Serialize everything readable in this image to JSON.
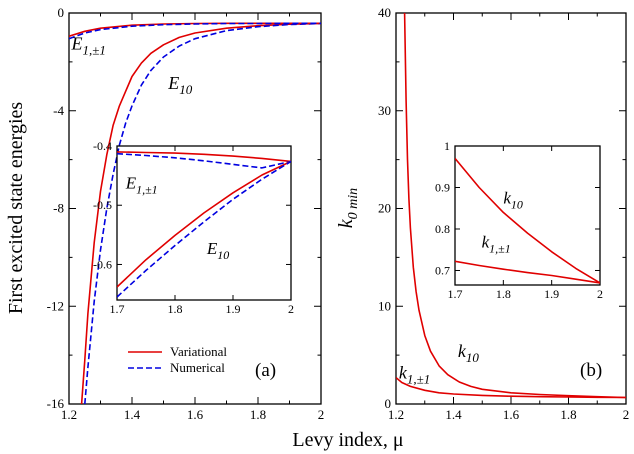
{
  "xlabel": "Levy index, μ",
  "colors": {
    "variational": "#e00000",
    "numerical": "#0000e0"
  },
  "legend": {
    "placement": "bottom-left",
    "entries": [
      {
        "label": "Variational",
        "color": "#e00000",
        "style": "solid"
      },
      {
        "label": "Numerical",
        "color": "#0000e0",
        "style": "dashed"
      }
    ]
  },
  "chart_data": [
    {
      "id": "a",
      "type": "line",
      "panel_label": "(a)",
      "ylabel": "First excited state energies",
      "xlim": [
        1.2,
        2.0
      ],
      "ylim": [
        -16,
        0
      ],
      "xticks": [
        1.2,
        1.4,
        1.6,
        1.8,
        2
      ],
      "xtick_labels": [
        "1.2",
        "1.4",
        "1.6",
        "1.8",
        "2"
      ],
      "yticks": [
        -16,
        -12,
        -8,
        -4,
        0
      ],
      "ytick_labels": [
        "-16",
        "-12",
        "-8",
        "-4",
        "0"
      ],
      "series": [
        {
          "name": "Variational",
          "label": "E10",
          "color": "#e00000",
          "dash": "solid",
          "x": [
            1.24,
            1.25,
            1.26,
            1.28,
            1.3,
            1.32,
            1.34,
            1.36,
            1.38,
            1.4,
            1.43,
            1.46,
            1.5,
            1.55,
            1.6,
            1.7,
            1.8,
            1.9,
            2.0
          ],
          "y": [
            -16,
            -14.2,
            -12.3,
            -9.4,
            -7.3,
            -5.8,
            -4.6,
            -3.8,
            -3.2,
            -2.6,
            -2.05,
            -1.65,
            -1.3,
            -1.0,
            -0.82,
            -0.62,
            -0.52,
            -0.46,
            -0.43
          ]
        },
        {
          "name": "Numerical",
          "label": "E10",
          "color": "#0000e0",
          "dash": "dashed",
          "x": [
            1.25,
            1.26,
            1.28,
            1.3,
            1.32,
            1.34,
            1.36,
            1.38,
            1.4,
            1.43,
            1.46,
            1.5,
            1.55,
            1.6,
            1.7,
            1.8,
            1.9,
            2.0
          ],
          "y": [
            -16,
            -14.5,
            -11.8,
            -9.7,
            -8.0,
            -6.6,
            -5.4,
            -4.5,
            -3.8,
            -2.95,
            -2.35,
            -1.8,
            -1.35,
            -1.05,
            -0.72,
            -0.56,
            -0.47,
            -0.43
          ]
        },
        {
          "name": "Variational",
          "label": "E1,±1",
          "color": "#e00000",
          "dash": "solid",
          "x": [
            1.2,
            1.25,
            1.3,
            1.4,
            1.5,
            1.6,
            1.7,
            1.8,
            1.9,
            2.0
          ],
          "y": [
            -0.95,
            -0.75,
            -0.62,
            -0.5,
            -0.45,
            -0.43,
            -0.42,
            -0.42,
            -0.42,
            -0.42
          ]
        },
        {
          "name": "Numerical",
          "label": "E1,±1",
          "color": "#0000e0",
          "dash": "dashed",
          "x": [
            1.2,
            1.25,
            1.3,
            1.4,
            1.5,
            1.6,
            1.7,
            1.8,
            1.9,
            2.0
          ],
          "y": [
            -1.05,
            -0.82,
            -0.68,
            -0.54,
            -0.48,
            -0.45,
            -0.43,
            -0.43,
            -0.42,
            -0.42
          ]
        }
      ],
      "annotations": [
        {
          "text": "E",
          "sub": "1,±1",
          "x": 1.208,
          "y": -1.5
        },
        {
          "text": "E",
          "sub": "10",
          "x": 1.515,
          "y": -3.1
        }
      ],
      "inset": {
        "xlim": [
          1.7,
          2.0
        ],
        "ylim": [
          -0.66,
          -0.4
        ],
        "xticks": [
          1.7,
          1.8,
          1.9,
          2
        ],
        "xtick_labels": [
          "1.7",
          "1.8",
          "1.9",
          "2"
        ],
        "yticks": [
          -0.6,
          -0.5,
          -0.4
        ],
        "ytick_labels": [
          "-0.6",
          "-0.5",
          "-0.4"
        ],
        "series": [
          {
            "name": "Variational",
            "label": "E1,±1",
            "color": "#e00000",
            "dash": "solid",
            "x": [
              1.7,
              1.75,
              1.8,
              1.85,
              1.9,
              1.95,
              2.0
            ],
            "y": [
              -0.41,
              -0.411,
              -0.412,
              -0.414,
              -0.417,
              -0.421,
              -0.426
            ]
          },
          {
            "name": "Numerical",
            "label": "E1,±1",
            "color": "#0000e0",
            "dash": "dashed",
            "x": [
              1.7,
              1.75,
              1.8,
              1.85,
              1.9,
              1.95,
              2.0
            ],
            "y": [
              -0.413,
              -0.416,
              -0.42,
              -0.425,
              -0.431,
              -0.437,
              -0.426
            ]
          },
          {
            "name": "Variational",
            "label": "E10",
            "color": "#e00000",
            "dash": "solid",
            "x": [
              1.7,
              1.75,
              1.8,
              1.85,
              1.9,
              1.95,
              2.0
            ],
            "y": [
              -0.638,
              -0.592,
              -0.551,
              -0.513,
              -0.479,
              -0.449,
              -0.426
            ]
          },
          {
            "name": "Numerical",
            "label": "E10",
            "color": "#0000e0",
            "dash": "dashed",
            "x": [
              1.7,
              1.75,
              1.8,
              1.85,
              1.9,
              1.95,
              2.0
            ],
            "y": [
              -0.655,
              -0.61,
              -0.568,
              -0.528,
              -0.49,
              -0.456,
              -0.426
            ]
          }
        ],
        "annotations": [
          {
            "text": "E",
            "sub": "1,±1",
            "x": 1.715,
            "y": -0.472
          },
          {
            "text": "E",
            "sub": "10",
            "x": 1.855,
            "y": -0.582
          }
        ]
      }
    },
    {
      "id": "b",
      "type": "line",
      "panel_label": "(b)",
      "ylabel": "k",
      "ylabel_sub": "0 min",
      "xlim": [
        1.2,
        2.0
      ],
      "ylim": [
        0,
        40
      ],
      "xticks": [
        1.2,
        1.4,
        1.6,
        1.8,
        2
      ],
      "xtick_labels": [
        "1.2",
        "1.4",
        "1.6",
        "1.8",
        "2"
      ],
      "yticks": [
        0,
        10,
        20,
        30,
        40
      ],
      "ytick_labels": [
        "0",
        "10",
        "20",
        "30",
        "40"
      ],
      "series": [
        {
          "name": "Variational",
          "label": "k10",
          "color": "#e00000",
          "dash": "solid",
          "x": [
            1.23,
            1.235,
            1.24,
            1.245,
            1.25,
            1.26,
            1.27,
            1.28,
            1.3,
            1.32,
            1.35,
            1.38,
            1.42,
            1.46,
            1.5,
            1.6,
            1.7,
            1.8,
            1.9,
            2.0
          ],
          "y": [
            40,
            31,
            25,
            21,
            18,
            14,
            11.5,
            9.6,
            7.0,
            5.4,
            3.9,
            3.0,
            2.25,
            1.8,
            1.5,
            1.15,
            0.97,
            0.85,
            0.75,
            0.67
          ]
        },
        {
          "name": "Variational",
          "label": "k1,±1",
          "color": "#e00000",
          "dash": "solid",
          "x": [
            1.2,
            1.22,
            1.25,
            1.3,
            1.35,
            1.4,
            1.5,
            1.6,
            1.7,
            1.8,
            1.9,
            2.0
          ],
          "y": [
            2.7,
            2.2,
            1.8,
            1.4,
            1.15,
            1.02,
            0.88,
            0.8,
            0.75,
            0.72,
            0.69,
            0.67
          ]
        }
      ],
      "annotations": [
        {
          "text": "k",
          "sub": "1,±1",
          "x": 1.21,
          "y": 2.6
        },
        {
          "text": "k",
          "sub": "10",
          "x": 1.415,
          "y": 4.8
        }
      ],
      "inset": {
        "xlim": [
          1.7,
          2.0
        ],
        "ylim": [
          0.665,
          1.0
        ],
        "xticks": [
          1.7,
          1.8,
          1.9,
          2
        ],
        "xtick_labels": [
          "1.7",
          "1.8",
          "1.9",
          "2"
        ],
        "yticks": [
          0.7,
          0.8,
          0.9,
          1.0
        ],
        "ytick_labels": [
          "0.7",
          "0.8",
          "0.9",
          "1"
        ],
        "series": [
          {
            "name": "Variational",
            "label": "k10",
            "color": "#e00000",
            "dash": "solid",
            "x": [
              1.7,
              1.75,
              1.8,
              1.85,
              1.9,
              1.95,
              2.0
            ],
            "y": [
              0.97,
              0.9,
              0.84,
              0.79,
              0.745,
              0.705,
              0.67
            ]
          },
          {
            "name": "Variational",
            "label": "k1,±1",
            "color": "#e00000",
            "dash": "solid",
            "x": [
              1.7,
              1.75,
              1.8,
              1.85,
              1.9,
              1.95,
              2.0
            ],
            "y": [
              0.722,
              0.712,
              0.703,
              0.695,
              0.688,
              0.679,
              0.67
            ]
          }
        ],
        "annotations": [
          {
            "text": "k",
            "sub": "10",
            "x": 1.8,
            "y": 0.862
          },
          {
            "text": "k",
            "sub": "1,±1",
            "x": 1.755,
            "y": 0.755
          }
        ]
      }
    }
  ]
}
